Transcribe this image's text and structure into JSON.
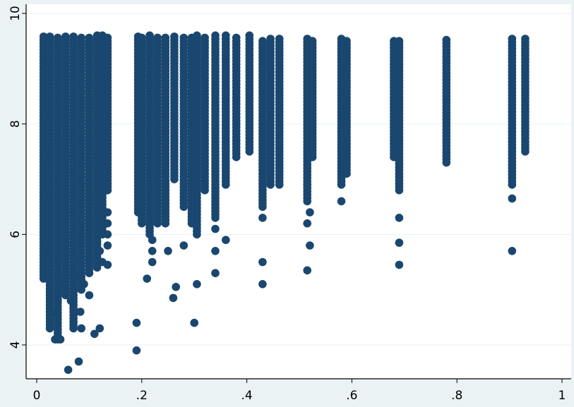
{
  "chart_data": {
    "type": "scatter",
    "title": "",
    "xlabel": "",
    "ylabel": "",
    "xlim": [
      0,
      1
    ],
    "ylim": [
      3.5,
      10
    ],
    "x_ticks": [
      0,
      0.2,
      0.4,
      0.6,
      0.8,
      1
    ],
    "x_tick_labels": [
      "0",
      ".2",
      ".4",
      ".6",
      ".8",
      "1"
    ],
    "y_ticks": [
      4,
      6,
      8,
      10
    ],
    "y_tick_labels": [
      "4",
      "6",
      "8",
      "10"
    ],
    "grid": "horizontal",
    "legend": "none",
    "colors": {
      "marker": "#1a476f",
      "plot_bg": "#ffffff",
      "outer_bg": "#eaf2f3",
      "grid": "#eaf2f3",
      "axis": "#000000"
    },
    "series": [
      {
        "columns": [
          {
            "x": 0.013,
            "ymin": 5.2,
            "ymax": 9.6
          },
          {
            "x": 0.025,
            "ymin": 4.3,
            "ymax": 9.6
          },
          {
            "x": 0.04,
            "ymin": 4.1,
            "ymax": 9.6
          },
          {
            "x": 0.055,
            "ymin": 4.9,
            "ymax": 9.6
          },
          {
            "x": 0.07,
            "ymin": 4.3,
            "ymax": 9.6
          },
          {
            "x": 0.085,
            "ymin": 5.0,
            "ymax": 9.6
          },
          {
            "x": 0.1,
            "ymin": 5.3,
            "ymax": 9.6
          },
          {
            "x": 0.115,
            "ymin": 5.4,
            "ymax": 9.6
          },
          {
            "x": 0.125,
            "ymin": 6.0,
            "ymax": 9.6
          },
          {
            "x": 0.135,
            "ymin": 6.8,
            "ymax": 9.6
          },
          {
            "x": 0.193,
            "ymin": 6.4,
            "ymax": 9.6
          },
          {
            "x": 0.2,
            "ymin": 6.2,
            "ymax": 9.6
          },
          {
            "x": 0.215,
            "ymin": 6.0,
            "ymax": 9.6
          },
          {
            "x": 0.23,
            "ymin": 6.2,
            "ymax": 9.6
          },
          {
            "x": 0.245,
            "ymin": 6.2,
            "ymax": 9.6
          },
          {
            "x": 0.262,
            "ymin": 7.0,
            "ymax": 9.6
          },
          {
            "x": 0.28,
            "ymin": 6.5,
            "ymax": 9.6
          },
          {
            "x": 0.295,
            "ymin": 6.2,
            "ymax": 9.6
          },
          {
            "x": 0.305,
            "ymin": 6.0,
            "ymax": 9.6
          },
          {
            "x": 0.32,
            "ymin": 6.8,
            "ymax": 9.6
          },
          {
            "x": 0.34,
            "ymin": 6.3,
            "ymax": 9.6
          },
          {
            "x": 0.36,
            "ymin": 6.9,
            "ymax": 9.6
          },
          {
            "x": 0.38,
            "ymin": 7.4,
            "ymax": 9.6
          },
          {
            "x": 0.405,
            "ymin": 7.5,
            "ymax": 9.6
          },
          {
            "x": 0.43,
            "ymin": 6.5,
            "ymax": 9.55
          },
          {
            "x": 0.445,
            "ymin": 6.9,
            "ymax": 9.55
          },
          {
            "x": 0.462,
            "ymin": 6.9,
            "ymax": 9.55
          },
          {
            "x": 0.515,
            "ymin": 6.6,
            "ymax": 9.55
          },
          {
            "x": 0.525,
            "ymin": 7.4,
            "ymax": 9.55
          },
          {
            "x": 0.58,
            "ymin": 6.9,
            "ymax": 9.55
          },
          {
            "x": 0.59,
            "ymin": 7.1,
            "ymax": 9.55
          },
          {
            "x": 0.68,
            "ymin": 7.4,
            "ymax": 9.55
          },
          {
            "x": 0.69,
            "ymin": 6.8,
            "ymax": 9.55
          },
          {
            "x": 0.78,
            "ymin": 7.3,
            "ymax": 9.55
          },
          {
            "x": 0.905,
            "ymin": 6.9,
            "ymax": 9.55
          },
          {
            "x": 0.93,
            "ymin": 7.5,
            "ymax": 9.55
          }
        ],
        "points": [
          [
            0.03,
            4.6
          ],
          [
            0.04,
            4.8
          ],
          [
            0.05,
            5.1
          ],
          [
            0.035,
            4.1
          ],
          [
            0.045,
            4.1
          ],
          [
            0.06,
            3.55
          ],
          [
            0.08,
            3.7
          ],
          [
            0.085,
            4.3
          ],
          [
            0.065,
            4.8
          ],
          [
            0.083,
            4.6
          ],
          [
            0.11,
            4.2
          ],
          [
            0.12,
            4.3
          ],
          [
            0.1,
            4.9
          ],
          [
            0.09,
            5.1
          ],
          [
            0.07,
            5.2
          ],
          [
            0.135,
            5.45
          ],
          [
            0.135,
            5.8
          ],
          [
            0.135,
            6.0
          ],
          [
            0.135,
            6.2
          ],
          [
            0.135,
            6.4
          ],
          [
            0.12,
            5.7
          ],
          [
            0.125,
            5.5
          ],
          [
            0.19,
            3.9
          ],
          [
            0.19,
            4.4
          ],
          [
            0.21,
            5.2
          ],
          [
            0.22,
            5.5
          ],
          [
            0.22,
            5.7
          ],
          [
            0.22,
            5.9
          ],
          [
            0.25,
            5.7
          ],
          [
            0.26,
            4.85
          ],
          [
            0.265,
            5.05
          ],
          [
            0.28,
            5.8
          ],
          [
            0.3,
            4.4
          ],
          [
            0.305,
            5.1
          ],
          [
            0.34,
            5.3
          ],
          [
            0.34,
            5.7
          ],
          [
            0.34,
            6.1
          ],
          [
            0.36,
            5.9
          ],
          [
            0.43,
            5.1
          ],
          [
            0.43,
            5.5
          ],
          [
            0.43,
            6.3
          ],
          [
            0.515,
            5.35
          ],
          [
            0.52,
            5.8
          ],
          [
            0.515,
            6.2
          ],
          [
            0.52,
            6.4
          ],
          [
            0.515,
            6.9
          ],
          [
            0.58,
            6.6
          ],
          [
            0.69,
            5.45
          ],
          [
            0.69,
            5.85
          ],
          [
            0.69,
            6.3
          ],
          [
            0.905,
            5.7
          ],
          [
            0.905,
            6.65
          ]
        ]
      }
    ]
  }
}
